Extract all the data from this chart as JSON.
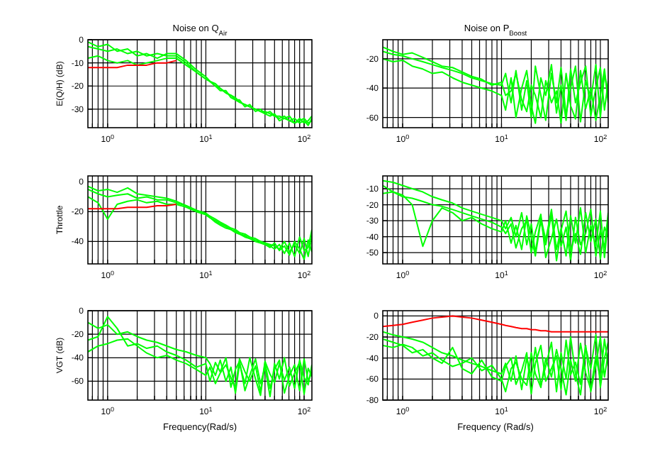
{
  "chart_data": [
    {
      "type": "line",
      "title": "Noise on Q$_{Air}$",
      "ylabel": "E(Q/H) (dB)",
      "log": "x",
      "grid": true,
      "xlim": [
        0.63,
        120
      ],
      "ylim": [
        -38,
        0
      ],
      "yticks": [
        0,
        -10,
        -20,
        -30
      ],
      "xticks": [
        {
          "value": 0.7,
          "label": null
        },
        {
          "value": 0.8,
          "label": null
        },
        {
          "value": 0.9,
          "label": null
        },
        {
          "value": 1,
          "label": "10$^{0}$"
        },
        {
          "value": 2,
          "label": null
        },
        {
          "value": 3,
          "label": null
        },
        {
          "value": 4,
          "label": null
        },
        {
          "value": 5,
          "label": null
        },
        {
          "value": 6,
          "label": null
        },
        {
          "value": 7,
          "label": null
        },
        {
          "value": 8,
          "label": null
        },
        {
          "value": 9,
          "label": null
        },
        {
          "value": 10,
          "label": "10$^{1}$"
        },
        {
          "value": 20,
          "label": null
        },
        {
          "value": 30,
          "label": null
        },
        {
          "value": 40,
          "label": null
        },
        {
          "value": 50,
          "label": null
        },
        {
          "value": 60,
          "label": null
        },
        {
          "value": 70,
          "label": null
        },
        {
          "value": 80,
          "label": null
        },
        {
          "value": 90,
          "label": null
        },
        {
          "value": 100,
          "label": "10$^{2}$"
        }
      ],
      "x": [
        0.63,
        0.8,
        1,
        1.25,
        1.6,
        2,
        2.5,
        3.2,
        4,
        5,
        6.3,
        8,
        10,
        11,
        12.5,
        14,
        16,
        18,
        20,
        22,
        25,
        28,
        32,
        36,
        40,
        45,
        50,
        56,
        63,
        71,
        80,
        90,
        100,
        110,
        120
      ],
      "series": [
        {
          "color": "#00ff00",
          "values": [
            -3,
            -4,
            -5,
            -4,
            -6,
            -5,
            -7,
            -6,
            -7,
            -7,
            -10,
            -14,
            -17,
            -18,
            -20,
            -21,
            -23,
            -24,
            -26,
            -27,
            -28,
            -29,
            -30,
            -31,
            -31,
            -32,
            -33,
            -33,
            -34,
            -35,
            -34,
            -36,
            -35,
            -37,
            -34
          ]
        },
        {
          "color": "#00ff00",
          "values": [
            -8,
            -7,
            -9,
            -10,
            -9,
            -11,
            -10,
            -9,
            -8,
            -8,
            -11,
            -14,
            -17,
            -18,
            -19,
            -21,
            -23,
            -24,
            -25,
            -27,
            -28,
            -29,
            -30,
            -31,
            -32,
            -31,
            -33,
            -34,
            -33,
            -35,
            -36,
            -34,
            -36,
            -35,
            -33
          ]
        },
        {
          "color": "#00ff00",
          "values": [
            -1,
            -3,
            -2,
            -5,
            -4,
            -7,
            -6,
            -8,
            -6,
            -6,
            -9,
            -13,
            -16,
            -18,
            -20,
            -22,
            -22,
            -25,
            -26,
            -26,
            -29,
            -28,
            -31,
            -30,
            -32,
            -33,
            -32,
            -35,
            -34,
            -33,
            -36,
            -35,
            -34,
            -36,
            -35
          ]
        },
        {
          "color": "#ff0000",
          "values": [
            -12,
            -12,
            -12,
            -12,
            -11,
            -11,
            -11,
            -10,
            -10,
            -9,
            null,
            null,
            null,
            null,
            null,
            null,
            null,
            null,
            null,
            null,
            null,
            null,
            null,
            null,
            null,
            null,
            null,
            null,
            null,
            null,
            null,
            null,
            null,
            null,
            null
          ]
        }
      ]
    },
    {
      "type": "line",
      "title": "Noise on P$_{Boost}$",
      "log": "x",
      "grid": true,
      "xlim": [
        0.63,
        120
      ],
      "ylim": [
        -67,
        -7
      ],
      "yticks": [
        -20,
        -40,
        -60
      ],
      "xticks": [
        {
          "value": 0.7,
          "label": null
        },
        {
          "value": 0.8,
          "label": null
        },
        {
          "value": 0.9,
          "label": null
        },
        {
          "value": 1,
          "label": "10$^{0}$"
        },
        {
          "value": 2,
          "label": null
        },
        {
          "value": 3,
          "label": null
        },
        {
          "value": 4,
          "label": null
        },
        {
          "value": 5,
          "label": null
        },
        {
          "value": 6,
          "label": null
        },
        {
          "value": 7,
          "label": null
        },
        {
          "value": 8,
          "label": null
        },
        {
          "value": 9,
          "label": null
        },
        {
          "value": 10,
          "label": "10$^{1}$"
        },
        {
          "value": 20,
          "label": null
        },
        {
          "value": 30,
          "label": null
        },
        {
          "value": 40,
          "label": null
        },
        {
          "value": 50,
          "label": null
        },
        {
          "value": 60,
          "label": null
        },
        {
          "value": 70,
          "label": null
        },
        {
          "value": 80,
          "label": null
        },
        {
          "value": 90,
          "label": null
        },
        {
          "value": 100,
          "label": "10$^{2}$"
        }
      ],
      "x": [
        0.63,
        0.8,
        1,
        1.25,
        1.6,
        2,
        2.5,
        3.2,
        4,
        5,
        6.3,
        8,
        10,
        11,
        12.5,
        14,
        16,
        18,
        20,
        22,
        25,
        28,
        32,
        36,
        40,
        45,
        50,
        56,
        63,
        71,
        80,
        90,
        100,
        110,
        120
      ],
      "series": [
        {
          "color": "#00ff00",
          "values": [
            -15,
            -17,
            -18,
            -20,
            -22,
            -24,
            -26,
            -28,
            -30,
            -33,
            -35,
            -37,
            -38,
            -30,
            -50,
            -28,
            -55,
            -35,
            -60,
            -25,
            -45,
            -62,
            -30,
            -50,
            -26,
            -58,
            -40,
            -25,
            -63,
            -35,
            -48,
            -24,
            -60,
            -30,
            -45
          ]
        },
        {
          "color": "#00ff00",
          "values": [
            -20,
            -22,
            -21,
            -25,
            -27,
            -30,
            -29,
            -33,
            -36,
            -38,
            -40,
            -42,
            -45,
            -55,
            -33,
            -60,
            -40,
            -28,
            -52,
            -64,
            -33,
            -45,
            -24,
            -57,
            -38,
            -62,
            -27,
            -50,
            -36,
            -25,
            -59,
            -40,
            -26,
            -55,
            -35
          ]
        },
        {
          "color": "#00ff00",
          "values": [
            -12,
            -15,
            -17,
            -16,
            -19,
            -22,
            -25,
            -26,
            -29,
            -32,
            -34,
            -38,
            -36,
            -45,
            -42,
            -30,
            -48,
            -56,
            -38,
            -45,
            -60,
            -35,
            -50,
            -42,
            -64,
            -30,
            -52,
            -61,
            -28,
            -54,
            -40,
            -62,
            -45,
            -27,
            -50
          ]
        }
      ]
    },
    {
      "type": "line",
      "ylabel": "Throttle",
      "log": "x",
      "grid": true,
      "xlim": [
        0.63,
        120
      ],
      "ylim": [
        -55,
        4
      ],
      "yticks": [
        0,
        -20,
        -40
      ],
      "xticks": [
        {
          "value": 0.7,
          "label": null
        },
        {
          "value": 0.8,
          "label": null
        },
        {
          "value": 0.9,
          "label": null
        },
        {
          "value": 1,
          "label": "10$^{0}$"
        },
        {
          "value": 2,
          "label": null
        },
        {
          "value": 3,
          "label": null
        },
        {
          "value": 4,
          "label": null
        },
        {
          "value": 5,
          "label": null
        },
        {
          "value": 6,
          "label": null
        },
        {
          "value": 7,
          "label": null
        },
        {
          "value": 8,
          "label": null
        },
        {
          "value": 9,
          "label": null
        },
        {
          "value": 10,
          "label": "10$^{1}$"
        },
        {
          "value": 20,
          "label": null
        },
        {
          "value": 30,
          "label": null
        },
        {
          "value": 40,
          "label": null
        },
        {
          "value": 50,
          "label": null
        },
        {
          "value": 60,
          "label": null
        },
        {
          "value": 70,
          "label": null
        },
        {
          "value": 80,
          "label": null
        },
        {
          "value": 90,
          "label": null
        },
        {
          "value": 100,
          "label": "10$^{2}$"
        }
      ],
      "x": [
        0.63,
        0.8,
        1,
        1.25,
        1.6,
        2,
        2.5,
        3.2,
        4,
        5,
        6.3,
        8,
        10,
        11,
        12.5,
        14,
        16,
        18,
        20,
        22,
        25,
        28,
        32,
        36,
        40,
        45,
        50,
        56,
        63,
        71,
        80,
        90,
        100,
        110,
        120
      ],
      "series": [
        {
          "color": "#00ff00",
          "values": [
            -5,
            -8,
            -10,
            -9,
            -8,
            -11,
            -10,
            -12,
            -12,
            -14,
            -16,
            -19,
            -22,
            -24,
            -26,
            -28,
            -30,
            -32,
            -33,
            -35,
            -36,
            -38,
            -39,
            -40,
            -41,
            -42,
            -43,
            -45,
            -40,
            -47,
            -42,
            -48,
            -38,
            -50,
            -36
          ]
        },
        {
          "color": "#00ff00",
          "values": [
            -10,
            -14,
            -25,
            -15,
            -13,
            -12,
            -14,
            -13,
            -15,
            -15,
            -17,
            -20,
            -22,
            -24,
            -27,
            -29,
            -31,
            -32,
            -34,
            -35,
            -37,
            -38,
            -40,
            -41,
            -42,
            -44,
            -41,
            -46,
            -43,
            -49,
            -40,
            -45,
            -52,
            -39,
            -47
          ]
        },
        {
          "color": "#00ff00",
          "values": [
            -3,
            -6,
            -5,
            -7,
            -4,
            -8,
            -9,
            -10,
            -11,
            -13,
            -16,
            -19,
            -21,
            -23,
            -25,
            -27,
            -29,
            -31,
            -32,
            -34,
            -35,
            -37,
            -38,
            -40,
            -41,
            -43,
            -45,
            -42,
            -48,
            -41,
            -50,
            -37,
            -46,
            -44,
            -32
          ]
        },
        {
          "color": "#ff0000",
          "values": [
            -18,
            -18,
            -18,
            -18,
            -17,
            -17,
            -17,
            -16,
            -16,
            -15,
            null,
            null,
            null,
            null,
            null,
            null,
            null,
            null,
            null,
            null,
            null,
            null,
            null,
            null,
            null,
            null,
            null,
            null,
            null,
            null,
            null,
            null,
            null,
            null,
            null
          ]
        }
      ]
    },
    {
      "type": "line",
      "log": "x",
      "grid": true,
      "xlim": [
        0.63,
        120
      ],
      "ylim": [
        -57,
        -2
      ],
      "yticks": [
        -10,
        -20,
        -30,
        -40,
        -50
      ],
      "xticks": [
        {
          "value": 0.7,
          "label": null
        },
        {
          "value": 0.8,
          "label": null
        },
        {
          "value": 0.9,
          "label": null
        },
        {
          "value": 1,
          "label": "10$^{0}$"
        },
        {
          "value": 2,
          "label": null
        },
        {
          "value": 3,
          "label": null
        },
        {
          "value": 4,
          "label": null
        },
        {
          "value": 5,
          "label": null
        },
        {
          "value": 6,
          "label": null
        },
        {
          "value": 7,
          "label": null
        },
        {
          "value": 8,
          "label": null
        },
        {
          "value": 9,
          "label": null
        },
        {
          "value": 10,
          "label": "10$^{1}$"
        },
        {
          "value": 20,
          "label": null
        },
        {
          "value": 30,
          "label": null
        },
        {
          "value": 40,
          "label": null
        },
        {
          "value": 50,
          "label": null
        },
        {
          "value": 60,
          "label": null
        },
        {
          "value": 70,
          "label": null
        },
        {
          "value": 80,
          "label": null
        },
        {
          "value": 90,
          "label": null
        },
        {
          "value": 100,
          "label": "10$^{2}$"
        }
      ],
      "x": [
        0.63,
        0.8,
        1,
        1.25,
        1.6,
        2,
        2.5,
        3.2,
        4,
        5,
        6.3,
        8,
        10,
        11,
        12.5,
        14,
        16,
        18,
        20,
        22,
        25,
        28,
        32,
        36,
        40,
        45,
        50,
        56,
        63,
        71,
        80,
        90,
        100,
        110,
        120
      ],
      "series": [
        {
          "color": "#00ff00",
          "values": [
            -5,
            -6,
            -8,
            -10,
            -12,
            -15,
            -17,
            -19,
            -22,
            -24,
            -26,
            -28,
            -30,
            -35,
            -28,
            -40,
            -25,
            -45,
            -32,
            -50,
            -28,
            -42,
            -23,
            -48,
            -35,
            -52,
            -27,
            -44,
            -22,
            -50,
            -33,
            -46,
            -24,
            -53,
            -30
          ]
        },
        {
          "color": "#00ff00",
          "values": [
            -8,
            -12,
            -14,
            -20,
            -46,
            -30,
            -22,
            -25,
            -30,
            -28,
            -32,
            -35,
            -37,
            -30,
            -44,
            -33,
            -48,
            -27,
            -40,
            -52,
            -30,
            -45,
            -26,
            -55,
            -36,
            -24,
            -49,
            -38,
            -51,
            -25,
            -43,
            -29,
            -54,
            -34,
            -40
          ]
        },
        {
          "color": "#00ff00",
          "values": [
            -13,
            -12,
            -15,
            -16,
            -18,
            -20,
            -21,
            -23,
            -25,
            -27,
            -29,
            -31,
            -34,
            -38,
            -32,
            -47,
            -35,
            -30,
            -50,
            -37,
            -26,
            -53,
            -41,
            -29,
            -46,
            -34,
            -55,
            -28,
            -45,
            -38,
            -23,
            -52,
            -36,
            -47,
            -25
          ]
        }
      ]
    },
    {
      "type": "line",
      "ylabel": "VGT (dB)",
      "xlabel": "Frequency(Rad/s)",
      "log": "x",
      "grid": true,
      "xlim": [
        0.63,
        120
      ],
      "ylim": [
        -76,
        0
      ],
      "yticks": [
        0,
        -20,
        -40,
        -60
      ],
      "xticks": [
        {
          "value": 0.7,
          "label": null
        },
        {
          "value": 0.8,
          "label": null
        },
        {
          "value": 0.9,
          "label": null
        },
        {
          "value": 1,
          "label": "10$^{0}$"
        },
        {
          "value": 2,
          "label": null
        },
        {
          "value": 3,
          "label": null
        },
        {
          "value": 4,
          "label": null
        },
        {
          "value": 5,
          "label": null
        },
        {
          "value": 6,
          "label": null
        },
        {
          "value": 7,
          "label": null
        },
        {
          "value": 8,
          "label": null
        },
        {
          "value": 9,
          "label": null
        },
        {
          "value": 10,
          "label": "10$^{1}$"
        },
        {
          "value": 20,
          "label": null
        },
        {
          "value": 30,
          "label": null
        },
        {
          "value": 40,
          "label": null
        },
        {
          "value": 50,
          "label": null
        },
        {
          "value": 60,
          "label": null
        },
        {
          "value": 70,
          "label": null
        },
        {
          "value": 80,
          "label": null
        },
        {
          "value": 90,
          "label": null
        },
        {
          "value": 100,
          "label": "10$^{2}$"
        }
      ],
      "x": [
        0.63,
        0.8,
        1,
        1.25,
        1.6,
        2,
        2.5,
        3.2,
        4,
        5,
        6.3,
        8,
        10,
        11,
        12.5,
        14,
        16,
        18,
        20,
        22,
        25,
        28,
        32,
        36,
        40,
        45,
        50,
        56,
        63,
        71,
        80,
        90,
        100,
        110,
        120
      ],
      "series": [
        {
          "color": "#00ff00",
          "values": [
            -10,
            -15,
            -12,
            -20,
            -18,
            -22,
            -25,
            -27,
            -30,
            -33,
            -35,
            -38,
            -40,
            -45,
            -55,
            -42,
            -60,
            -48,
            -70,
            -45,
            -62,
            -40,
            -58,
            -72,
            -44,
            -66,
            -50,
            -42,
            -70,
            -55,
            -46,
            -68,
            -41,
            -60,
            -52
          ]
        },
        {
          "color": "#00ff00",
          "values": [
            -25,
            -22,
            -5,
            -15,
            -30,
            -28,
            -32,
            -30,
            -35,
            -38,
            -42,
            -48,
            -45,
            -60,
            -44,
            -52,
            -40,
            -65,
            -50,
            -43,
            -68,
            -55,
            -41,
            -62,
            -48,
            -73,
            -45,
            -58,
            -40,
            -64,
            -53,
            -44,
            -71,
            -49,
            -56
          ]
        },
        {
          "color": "#00ff00",
          "values": [
            -35,
            -30,
            -28,
            -25,
            -24,
            -30,
            -36,
            -40,
            -38,
            -42,
            -45,
            -50,
            -55,
            -48,
            -62,
            -53,
            -46,
            -57,
            -66,
            -41,
            -52,
            -60,
            -47,
            -69,
            -43,
            -54,
            -61,
            -45,
            -59,
            -48,
            -66,
            -42,
            -57,
            -63,
            -46
          ]
        }
      ]
    },
    {
      "type": "line",
      "xlabel": "Frequency (Rad/s)",
      "log": "x",
      "grid": true,
      "xlim": [
        0.63,
        120
      ],
      "ylim": [
        -80,
        5
      ],
      "yticks": [
        0,
        -20,
        -40,
        -60,
        -80
      ],
      "xticks": [
        {
          "value": 0.7,
          "label": null
        },
        {
          "value": 0.8,
          "label": null
        },
        {
          "value": 0.9,
          "label": null
        },
        {
          "value": 1,
          "label": "10$^{0}$"
        },
        {
          "value": 2,
          "label": null
        },
        {
          "value": 3,
          "label": null
        },
        {
          "value": 4,
          "label": null
        },
        {
          "value": 5,
          "label": null
        },
        {
          "value": 6,
          "label": null
        },
        {
          "value": 7,
          "label": null
        },
        {
          "value": 8,
          "label": null
        },
        {
          "value": 9,
          "label": null
        },
        {
          "value": 10,
          "label": "10$^{1}$"
        },
        {
          "value": 20,
          "label": null
        },
        {
          "value": 30,
          "label": null
        },
        {
          "value": 40,
          "label": null
        },
        {
          "value": 50,
          "label": null
        },
        {
          "value": 60,
          "label": null
        },
        {
          "value": 70,
          "label": null
        },
        {
          "value": 80,
          "label": null
        },
        {
          "value": 90,
          "label": null
        },
        {
          "value": 100,
          "label": "10$^{2}$"
        }
      ],
      "x": [
        0.63,
        0.8,
        1,
        1.25,
        1.6,
        2,
        2.5,
        3.2,
        4,
        5,
        6.3,
        8,
        10,
        11,
        12.5,
        14,
        16,
        18,
        20,
        22,
        25,
        28,
        32,
        36,
        40,
        45,
        50,
        56,
        63,
        71,
        80,
        90,
        100,
        110,
        120
      ],
      "series": [
        {
          "color": "#00ff00",
          "values": [
            -15,
            -18,
            -20,
            -22,
            -25,
            -30,
            -35,
            -38,
            -42,
            -45,
            -48,
            -52,
            -55,
            -45,
            -62,
            -38,
            -70,
            -40,
            -58,
            -30,
            -66,
            -48,
            -25,
            -72,
            -35,
            -60,
            -20,
            -55,
            -75,
            -30,
            -50,
            -18,
            -68,
            -40,
            -25
          ]
        },
        {
          "color": "#00ff00",
          "values": [
            -22,
            -25,
            -28,
            -35,
            -32,
            -40,
            -45,
            -30,
            -50,
            -55,
            -42,
            -58,
            -62,
            -48,
            -40,
            -65,
            -52,
            -35,
            -74,
            -45,
            -28,
            -62,
            -50,
            -38,
            -70,
            -23,
            -56,
            -44,
            -65,
            -28,
            -72,
            -47,
            -20,
            -58,
            -35
          ]
        },
        {
          "color": "#00ff00",
          "values": [
            -28,
            -30,
            -27,
            -30,
            -38,
            -35,
            -42,
            -48,
            -45,
            -40,
            -52,
            -47,
            -60,
            -72,
            -50,
            -44,
            -60,
            -66,
            -35,
            -55,
            -68,
            -40,
            -58,
            -32,
            -50,
            -75,
            -42,
            -62,
            -26,
            -54,
            -70,
            -38,
            -60,
            -22,
            -48
          ]
        },
        {
          "color": "#ff0000",
          "values": [
            -10,
            -9,
            -8,
            -6,
            -4,
            -2,
            -1,
            0,
            -1,
            -2,
            -4,
            -6,
            -8,
            -9,
            -10,
            -11,
            -12,
            -12,
            -13,
            -13,
            -14,
            -14,
            -15,
            -15,
            -15,
            -15,
            -15,
            -15,
            -15,
            -15,
            -15,
            -15,
            -15,
            -15,
            -15
          ]
        }
      ]
    }
  ]
}
